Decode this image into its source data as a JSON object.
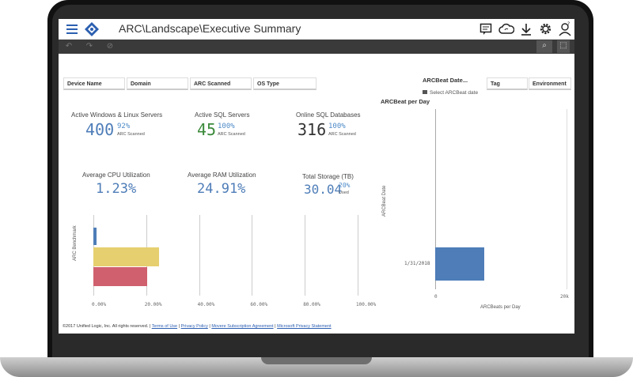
{
  "header": {
    "title": "ARC\\Landscape\\Executive Summary"
  },
  "filters": [
    {
      "label": "Device Name"
    },
    {
      "label": "Domain"
    },
    {
      "label": "ARC Scanned"
    },
    {
      "label": "OS Type"
    },
    {
      "label": "Tag"
    },
    {
      "label": "Environment"
    }
  ],
  "arcbeat_filter": {
    "label": "ARCBeat Date...",
    "hint": "Select ARCBeat date"
  },
  "kpis": [
    {
      "title": "Active Windows & Linux Servers",
      "value": "400",
      "pct": "92%",
      "sub": "ARC Scanned",
      "color": "#4e7db8"
    },
    {
      "title": "Active SQL Servers",
      "value": "45",
      "pct": "100%",
      "sub": "ARC Scanned",
      "color": "#3b8a3b"
    },
    {
      "title": "Online SQL Databases",
      "value": "316",
      "pct": "100%",
      "sub": "ARC Scanned",
      "color": "#333333"
    },
    {
      "title": "Average CPU Utilization",
      "value": "1.23%",
      "color": "#4e7db8"
    },
    {
      "title": "Average RAM Utilization",
      "value": "24.91%",
      "color": "#4e7db8"
    },
    {
      "title": "Total Storage (TB)",
      "value": "30.04",
      "pct": "20%",
      "sub": "Used",
      "color": "#4e7db8"
    }
  ],
  "chart_data": [
    {
      "type": "bar",
      "orientation": "horizontal",
      "ylabel": "ARC Benchmark",
      "x_ticks": [
        "0.00%",
        "20.00%",
        "40.00%",
        "60.00%",
        "80.00%",
        "100.00%"
      ],
      "xlim": [
        0,
        100
      ],
      "series": [
        {
          "values": [
            1.23
          ],
          "color": "#4e7db8"
        },
        {
          "values": [
            24.91
          ],
          "color": "#e6cf6e"
        },
        {
          "values": [
            20.5
          ],
          "color": "#d0606e"
        }
      ]
    },
    {
      "type": "bar",
      "orientation": "horizontal",
      "title": "ARCBeat per Day",
      "ylabel": "ARCBeat Date",
      "xlabel": "ARCBeats per Day",
      "categories": [
        "1/31/2018"
      ],
      "values": [
        7500
      ],
      "xlim": [
        0,
        20000
      ],
      "x_ticks": [
        "0",
        "20k"
      ],
      "color": "#4e7db8"
    }
  ],
  "footer": {
    "copyright": "©2017 Unified Logic, Inc. All rights reserved. |",
    "links": [
      "Terms of Use",
      "Privacy Policy",
      "Movere Subscription Agreement",
      "Microsoft Privacy Statement"
    ]
  }
}
